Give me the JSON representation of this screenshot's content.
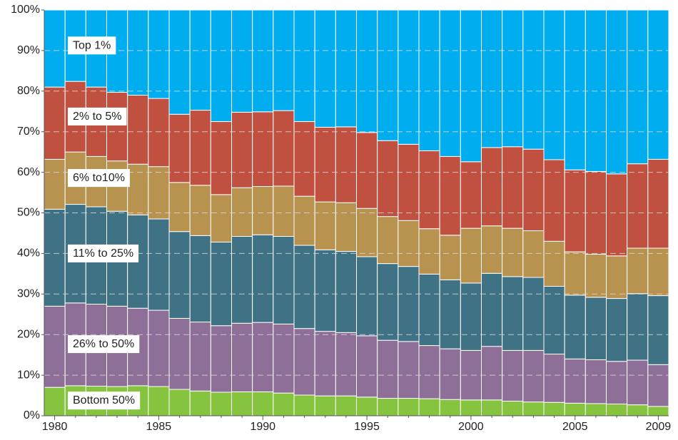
{
  "chart_data": {
    "type": "stacked_bar",
    "categories": [
      "1980",
      null,
      null,
      null,
      null,
      "1985",
      null,
      null,
      null,
      null,
      "1990",
      null,
      null,
      null,
      null,
      "1995",
      null,
      null,
      null,
      null,
      "2000",
      null,
      null,
      null,
      null,
      "2005",
      null,
      null,
      null,
      "2009"
    ],
    "series": [
      {
        "name": "Bottom 50%",
        "color": "#86c440",
        "values": [
          7.0,
          7.4,
          7.3,
          7.2,
          7.4,
          7.2,
          6.5,
          6.1,
          5.8,
          5.9,
          5.9,
          5.6,
          5.1,
          4.9,
          4.9,
          4.6,
          4.3,
          4.3,
          4.2,
          4.0,
          3.9,
          3.9,
          3.6,
          3.4,
          3.3,
          3.1,
          3.0,
          2.9,
          2.7,
          2.3
        ]
      },
      {
        "name": "26% to 50%",
        "color": "#8e6f97",
        "values": [
          20.0,
          20.4,
          20.2,
          19.8,
          19.1,
          18.8,
          17.5,
          17.0,
          16.4,
          16.9,
          17.1,
          17.0,
          16.4,
          15.9,
          15.6,
          15.1,
          14.3,
          14.0,
          13.1,
          12.5,
          12.2,
          13.2,
          12.5,
          12.7,
          11.9,
          10.9,
          10.8,
          10.5,
          11.0,
          10.3
        ]
      },
      {
        "name": "11% to 25%",
        "color": "#3f7285",
        "values": [
          23.9,
          24.3,
          24.0,
          23.4,
          23.0,
          22.5,
          21.4,
          21.3,
          20.6,
          21.4,
          21.6,
          21.6,
          20.5,
          20.1,
          20.0,
          19.5,
          18.9,
          18.5,
          17.6,
          17.0,
          16.6,
          18.0,
          18.2,
          18.0,
          16.7,
          15.7,
          15.4,
          15.5,
          16.4,
          17.0
        ]
      },
      {
        "name": "6% to10%",
        "color": "#b8924f",
        "values": [
          12.3,
          12.9,
          12.4,
          12.4,
          12.5,
          12.9,
          12.1,
          12.4,
          11.7,
          12.0,
          11.9,
          12.4,
          12.1,
          11.8,
          12.0,
          11.9,
          11.6,
          11.3,
          11.2,
          11.0,
          13.5,
          11.7,
          11.9,
          11.5,
          11.1,
          10.7,
          10.6,
          10.5,
          11.2,
          11.7
        ]
      },
      {
        "name": "2% to 5%",
        "color": "#c0503f",
        "values": [
          17.8,
          17.4,
          17.1,
          16.9,
          17.0,
          16.8,
          16.8,
          18.5,
          18.0,
          18.6,
          18.4,
          18.6,
          18.4,
          18.4,
          18.7,
          18.7,
          18.7,
          18.8,
          19.2,
          19.4,
          16.4,
          19.3,
          20.1,
          20.1,
          20.1,
          20.2,
          20.4,
          20.2,
          20.8,
          21.9
        ]
      },
      {
        "name": "Top 1%",
        "color": "#00aeef",
        "values": [
          19.0,
          17.6,
          19.0,
          20.3,
          21.0,
          21.8,
          25.7,
          24.7,
          27.5,
          25.2,
          25.1,
          24.8,
          27.5,
          28.9,
          28.8,
          30.2,
          32.2,
          33.1,
          34.7,
          36.1,
          37.4,
          33.9,
          33.7,
          34.3,
          36.9,
          39.4,
          39.8,
          40.4,
          37.9,
          36.8
        ]
      }
    ],
    "ylim": [
      0,
      100
    ],
    "yticks": [
      {
        "value": 0,
        "label": "0%"
      },
      {
        "value": 10,
        "label": "10%"
      },
      {
        "value": 20,
        "label": "20%"
      },
      {
        "value": 30,
        "label": "30%"
      },
      {
        "value": 40,
        "label": "40%"
      },
      {
        "value": 50,
        "label": "50%"
      },
      {
        "value": 60,
        "label": "60%"
      },
      {
        "value": 70,
        "label": "70%"
      },
      {
        "value": 80,
        "label": "80%"
      },
      {
        "value": 90,
        "label": "90%"
      },
      {
        "value": 100,
        "label": "100%"
      }
    ],
    "grid": true
  }
}
